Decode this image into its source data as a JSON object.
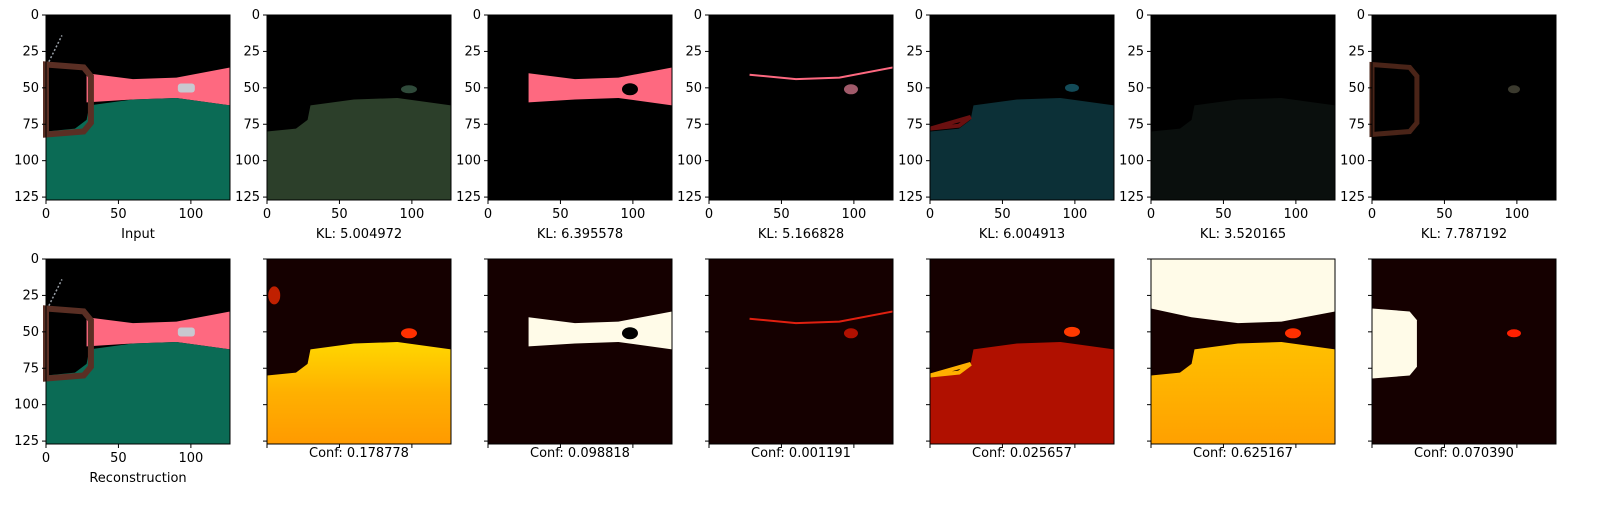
{
  "chart_data": {
    "type": "image-grid",
    "rows": 2,
    "cols": 7,
    "image_extent": [
      0,
      127
    ],
    "xticks": [
      0,
      50,
      100
    ],
    "yticks": [
      0,
      25,
      50,
      75,
      100,
      125
    ],
    "top_row": [
      {
        "caption": "Input",
        "kind": "input-segmentation"
      },
      {
        "caption": "KL: 5.004972",
        "kind": "road-green",
        "kl": 5.004972
      },
      {
        "caption": "KL: 6.395578",
        "kind": "pink-band",
        "kl": 6.395578
      },
      {
        "caption": "KL: 5.166828",
        "kind": "thin-line",
        "kl": 5.166828
      },
      {
        "caption": "KL: 6.004913",
        "kind": "road-teal",
        "kl": 6.004913
      },
      {
        "caption": "KL: 3.520165",
        "kind": "dark",
        "kl": 3.520165
      },
      {
        "caption": "KL: 7.787192",
        "kind": "mirror",
        "kl": 7.787192
      }
    ],
    "bottom_row": [
      {
        "caption": "Reconstruction",
        "kind": "input-segmentation"
      },
      {
        "caption": "Conf: 0.178778",
        "kind": "heat-road-yellow",
        "conf": 0.178778
      },
      {
        "caption": "Conf: 0.098818",
        "kind": "heat-band-white",
        "conf": 0.098818
      },
      {
        "caption": "Conf: 0.001191",
        "kind": "heat-line",
        "conf": 0.001191
      },
      {
        "caption": "Conf: 0.025657",
        "kind": "heat-road-red",
        "conf": 0.025657
      },
      {
        "caption": "Conf: 0.625167",
        "kind": "heat-sky-road",
        "conf": 0.625167
      },
      {
        "caption": "Conf: 0.070390",
        "kind": "heat-mirror",
        "conf": 0.07039
      }
    ],
    "colors": {
      "road": "#0b6b55",
      "band": "#fe6980",
      "mirror": "#5a2f24",
      "sky": "#000000",
      "heat_dark": "#150000"
    }
  }
}
